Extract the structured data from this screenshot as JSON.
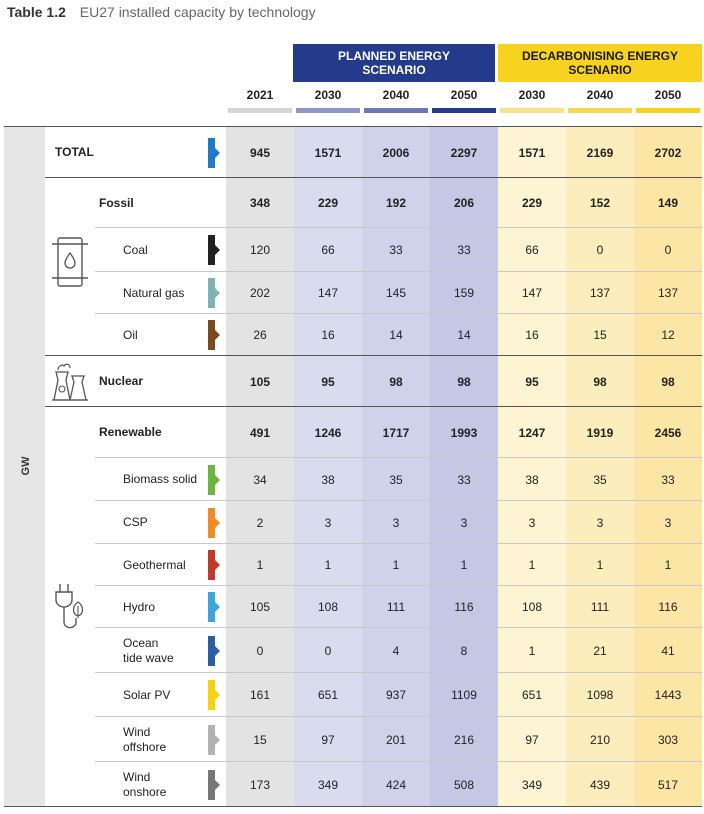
{
  "title": {
    "number": "Table 1.2",
    "text": "EU27 installed capacity by technology"
  },
  "scenarios": {
    "planned": "PLANNED ENERGY SCENARIO",
    "decarb": "DECARBONISING ENERGY SCENARIO"
  },
  "years": [
    "2021",
    "2030",
    "2040",
    "2050",
    "2030",
    "2040",
    "2050"
  ],
  "unit": "GW",
  "colors": {
    "planned_header": "#243b8c",
    "decarb_header": "#f7d21e",
    "col_2021": "#e3e3e3",
    "planned_cols": [
      "#d9dcef",
      "#cfd2ea",
      "#c4c8e4"
    ],
    "decarb_cols": [
      "#fdf4d3",
      "#fcedbc",
      "#fbe6a6"
    ]
  },
  "rows": [
    {
      "label": "TOTAL",
      "bold": true,
      "marker": "#1f7bc4",
      "values": [
        "945",
        "1571",
        "2006",
        "2297",
        "1571",
        "2169",
        "2702"
      ]
    },
    {
      "label": "Fossil",
      "bold": true,
      "values": [
        "348",
        "229",
        "192",
        "206",
        "229",
        "152",
        "149"
      ]
    },
    {
      "label": "Coal",
      "marker": "#222222",
      "values": [
        "120",
        "66",
        "33",
        "33",
        "66",
        "0",
        "0"
      ]
    },
    {
      "label": "Natural gas",
      "marker": "#7fb3b3",
      "values": [
        "202",
        "147",
        "145",
        "159",
        "147",
        "137",
        "137"
      ]
    },
    {
      "label": "Oil",
      "marker": "#7a4a1e",
      "values": [
        "26",
        "16",
        "14",
        "14",
        "16",
        "15",
        "12"
      ]
    },
    {
      "label": "Nuclear",
      "bold": true,
      "values": [
        "105",
        "95",
        "98",
        "98",
        "95",
        "98",
        "98"
      ]
    },
    {
      "label": "Renewable",
      "bold": true,
      "values": [
        "491",
        "1246",
        "1717",
        "1993",
        "1247",
        "1919",
        "2456"
      ]
    },
    {
      "label": "Biomass solid",
      "marker": "#6db33f",
      "values": [
        "34",
        "38",
        "35",
        "33",
        "38",
        "35",
        "33"
      ]
    },
    {
      "label": "CSP",
      "marker": "#f08a24",
      "values": [
        "2",
        "3",
        "3",
        "3",
        "3",
        "3",
        "3"
      ]
    },
    {
      "label": "Geothermal",
      "marker": "#c0392b",
      "values": [
        "1",
        "1",
        "1",
        "1",
        "1",
        "1",
        "1"
      ]
    },
    {
      "label": "Hydro",
      "marker": "#3fa3dc",
      "values": [
        "105",
        "108",
        "111",
        "116",
        "108",
        "111",
        "116"
      ]
    },
    {
      "label": "Ocean\ntide wave",
      "marker": "#2a5fa8",
      "values": [
        "0",
        "0",
        "4",
        "8",
        "1",
        "21",
        "41"
      ]
    },
    {
      "label": "Solar PV",
      "marker": "#f5d20f",
      "values": [
        "161",
        "651",
        "937",
        "1109",
        "651",
        "1098",
        "1443"
      ]
    },
    {
      "label": "Wind\noffshore",
      "marker": "#b3b3b3",
      "values": [
        "15",
        "97",
        "201",
        "216",
        "97",
        "210",
        "303"
      ]
    },
    {
      "label": "Wind\nonshore",
      "marker": "#777777",
      "values": [
        "173",
        "349",
        "424",
        "508",
        "349",
        "439",
        "517"
      ]
    }
  ]
}
